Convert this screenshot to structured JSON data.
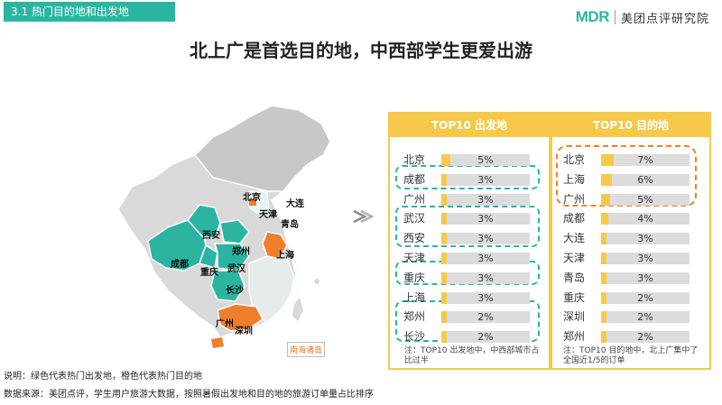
{
  "section": {
    "label": "3.1  热门目的地和出发地"
  },
  "brand": {
    "logo": "MDR",
    "name": "美团点评研究院"
  },
  "title": "北上广是首选目的地，中西部学生更爱出游",
  "map": {
    "cities": {
      "beijing": "北京",
      "tianjin": "天津",
      "dalian": "大连",
      "qingdao": "青岛",
      "xian": "西安",
      "zhengzhou": "郑州",
      "chengdu": "成都",
      "wuhan": "武汉",
      "chongqing": "重庆",
      "changsha": "长沙",
      "shanghai": "上海",
      "guangzhou": "广州",
      "shenzhen": "深圳"
    },
    "islands_label": "南海诸岛",
    "colors": {
      "departure": "#2bb5a1",
      "destination": "#f07f2c",
      "base": "#d9d9d9"
    }
  },
  "departure": {
    "header": "TOP10 出发地",
    "rows": [
      {
        "city": "北京",
        "value": 5,
        "label": "5%"
      },
      {
        "city": "成都",
        "value": 3,
        "label": "3%"
      },
      {
        "city": "广州",
        "value": 3,
        "label": "3%"
      },
      {
        "city": "武汉",
        "value": 3,
        "label": "3%"
      },
      {
        "city": "西安",
        "value": 3,
        "label": "3%"
      },
      {
        "city": "天津",
        "value": 3,
        "label": "3%"
      },
      {
        "city": "重庆",
        "value": 3,
        "label": "3%"
      },
      {
        "city": "上海",
        "value": 3,
        "label": "3%"
      },
      {
        "city": "郑州",
        "value": 2,
        "label": "2%"
      },
      {
        "city": "长沙",
        "value": 2,
        "label": "2%"
      }
    ],
    "note": "注：TOP10 出发地中，中西部城市占比过半"
  },
  "destination": {
    "header": "TOP10 目的地",
    "rows": [
      {
        "city": "北京",
        "value": 7,
        "label": "7%"
      },
      {
        "city": "上海",
        "value": 6,
        "label": "6%"
      },
      {
        "city": "广州",
        "value": 5,
        "label": "5%"
      },
      {
        "city": "成都",
        "value": 4,
        "label": "4%"
      },
      {
        "city": "大连",
        "value": 3,
        "label": "3%"
      },
      {
        "city": "天津",
        "value": 3,
        "label": "3%"
      },
      {
        "city": "青岛",
        "value": 3,
        "label": "3%"
      },
      {
        "city": "重庆",
        "value": 2,
        "label": "2%"
      },
      {
        "city": "深圳",
        "value": 2,
        "label": "2%"
      },
      {
        "city": "郑州",
        "value": 2,
        "label": "2%"
      }
    ],
    "note": "注：TOP10 目的地中，北上广集中了全国近1/5的订单"
  },
  "footer": {
    "legend": "说明：绿色代表热门出发地，橙色代表热门目的地",
    "source": "数据来源：美团点评，学生用户旅游大数据，按照暑假出发地和目的地的旅游订单量占比排序"
  },
  "colors": {
    "accent": "#2bb5a1",
    "highlight": "#f6c94a",
    "orange": "#f07f2c"
  }
}
